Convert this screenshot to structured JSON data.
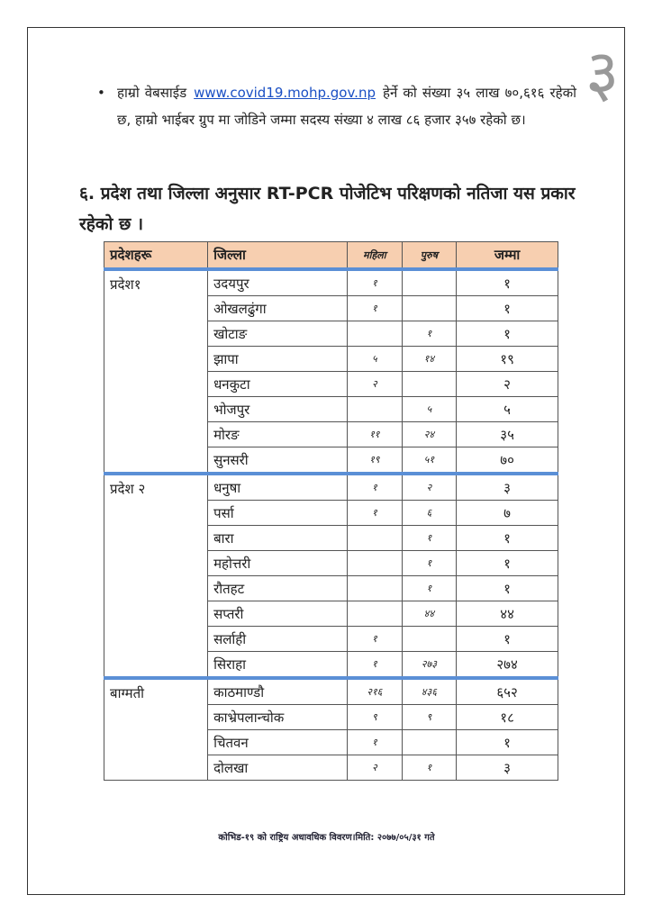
{
  "page_number": "३",
  "bullet": {
    "before": "हाम्रो वेबसाईड",
    "link": "www.covid19.mohp.gov.np",
    "after": "हेर्ने को संख्या ३५ लाख ७०,६१६ रहेको छ, हाम्रो भाईबर ग्रुप मा जोडिने जम्मा सदस्य संख्या ४ लाख ८६ हजार ३५७ रहेको छ।"
  },
  "heading": "६. प्रदेश तथा जिल्ला अनुसार RT-PCR पोजेटिभ परिक्षणको नतिजा यस प्रकार रहेको छ ।",
  "table": {
    "header": [
      "प्रदेशहरू",
      "जिल्ला",
      "महिला",
      "पुरुष",
      "जम्मा"
    ],
    "groups": [
      {
        "province": "प्रदेश१",
        "rows": [
          [
            "उदयपुर",
            "१",
            null,
            "१"
          ],
          [
            "ओखलढुंगा",
            "१",
            null,
            "१"
          ],
          [
            "खोटाङ",
            null,
            "१",
            "१"
          ],
          [
            "झापा",
            "५",
            "१४",
            "१९"
          ],
          [
            "धनकुटा",
            "२",
            null,
            "२"
          ],
          [
            "भोजपुर",
            null,
            "५",
            "५"
          ],
          [
            "मोरङ",
            "११",
            "२४",
            "३५"
          ],
          [
            "सुनसरी",
            "१९",
            "५१",
            "७०"
          ]
        ]
      },
      {
        "province": "प्रदेश २",
        "rows": [
          [
            "धनुषा",
            "१",
            "२",
            "३"
          ],
          [
            "पर्सा",
            "१",
            "६",
            "७"
          ],
          [
            "बारा",
            null,
            "१",
            "१"
          ],
          [
            "महोत्तरी",
            null,
            "१",
            "१"
          ],
          [
            "रौतहट",
            null,
            "१",
            "१"
          ],
          [
            "सप्तरी",
            null,
            "४४",
            "४४"
          ],
          [
            "सर्लाही",
            "१",
            null,
            "१"
          ],
          [
            "सिराहा",
            "१",
            "२७३",
            "२७४"
          ]
        ]
      },
      {
        "province": "बाग्मती",
        "rows": [
          [
            "काठमाण्डौ",
            "२१६",
            "४३६",
            "६५२"
          ],
          [
            "काभ्रेपलान्चोक",
            "९",
            "९",
            "१८"
          ],
          [
            "चितवन",
            "१",
            null,
            "१"
          ],
          [
            "दोलखा",
            "२",
            "१",
            "३"
          ]
        ]
      }
    ]
  },
  "footer": "कोभिड-१९ को राष्ट्रिय अधावधिक विवरण।मिति: २०७७/०५/३१ गते"
}
